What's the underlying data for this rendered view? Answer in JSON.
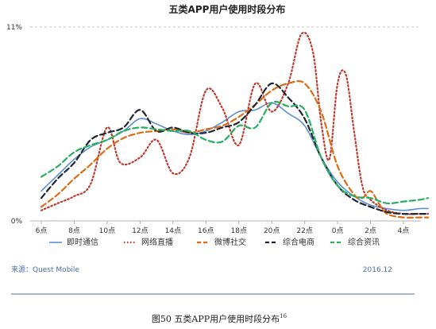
{
  "chart_data": {
    "type": "line",
    "title": "五类APP用户使用时段分布",
    "y_tick_labels": [
      "11%",
      "0%"
    ],
    "ylim": [
      0,
      11
    ],
    "x_tick_labels": [
      "6点",
      "8点",
      "10点",
      "12点",
      "14点",
      "16点",
      "18点",
      "20点",
      "22点",
      "0点",
      "2点",
      "4点"
    ],
    "x_range": [
      6,
      29.5
    ],
    "grid": "dashed-top",
    "legend_position": "bottom",
    "series": [
      {
        "name": "即时通信",
        "style": "solid",
        "color": "#5b8fd0",
        "points": [
          [
            6,
            1.7
          ],
          [
            7,
            2.6
          ],
          [
            8,
            3.5
          ],
          [
            9,
            4.2
          ],
          [
            10,
            4.6
          ],
          [
            11,
            5.1
          ],
          [
            12,
            5.8
          ],
          [
            13,
            5.5
          ],
          [
            14,
            5.1
          ],
          [
            15,
            4.9
          ],
          [
            16,
            5.1
          ],
          [
            17,
            5.6
          ],
          [
            18,
            6.2
          ],
          [
            19,
            6.3
          ],
          [
            20,
            6.7
          ],
          [
            21,
            6.1
          ],
          [
            22,
            5.4
          ],
          [
            23,
            3.6
          ],
          [
            24,
            2.2
          ],
          [
            25,
            1.4
          ],
          [
            26,
            0.9
          ],
          [
            27,
            0.7
          ],
          [
            28,
            0.6
          ],
          [
            29,
            0.7
          ],
          [
            29.5,
            0.7
          ]
        ]
      },
      {
        "name": "网络直播",
        "style": "dotted",
        "color": "#c0392b",
        "points": [
          [
            6,
            0.6
          ],
          [
            7,
            1.0
          ],
          [
            8,
            1.4
          ],
          [
            9,
            2.1
          ],
          [
            10,
            5.3
          ],
          [
            10.8,
            3.3
          ],
          [
            12,
            3.6
          ],
          [
            13,
            4.6
          ],
          [
            14,
            2.7
          ],
          [
            15,
            3.6
          ],
          [
            16,
            7.4
          ],
          [
            17,
            6.4
          ],
          [
            18,
            4.3
          ],
          [
            19,
            7.8
          ],
          [
            20,
            6.2
          ],
          [
            21,
            7.8
          ],
          [
            21.8,
            10.6
          ],
          [
            22.5,
            9.6
          ],
          [
            23,
            5.6
          ],
          [
            23.5,
            3.5
          ],
          [
            24,
            7.8
          ],
          [
            24.5,
            8.3
          ],
          [
            25,
            5.1
          ],
          [
            25.5,
            2.0
          ],
          [
            26,
            1.2
          ],
          [
            27,
            0.6
          ],
          [
            28,
            0.4
          ],
          [
            29,
            0.4
          ],
          [
            29.5,
            0.4
          ]
        ]
      },
      {
        "name": "微博社交",
        "style": "dashed",
        "color": "#e06a12",
        "points": [
          [
            6,
            0.8
          ],
          [
            7,
            1.5
          ],
          [
            8,
            2.4
          ],
          [
            9,
            3.2
          ],
          [
            10,
            4.1
          ],
          [
            11,
            4.7
          ],
          [
            12,
            5.0
          ],
          [
            13,
            5.1
          ],
          [
            14,
            5.2
          ],
          [
            15,
            5.0
          ],
          [
            16,
            5.2
          ],
          [
            17,
            5.4
          ],
          [
            18,
            5.9
          ],
          [
            19,
            6.6
          ],
          [
            20,
            7.4
          ],
          [
            21,
            7.8
          ],
          [
            22,
            7.8
          ],
          [
            23,
            6.2
          ],
          [
            24,
            3.1
          ],
          [
            25,
            1.5
          ],
          [
            25.5,
            1.3
          ],
          [
            26,
            1.7
          ],
          [
            26.5,
            1.0
          ],
          [
            27,
            0.4
          ],
          [
            28,
            0.2
          ],
          [
            29,
            0.2
          ],
          [
            29.5,
            0.2
          ]
        ]
      },
      {
        "name": "综合电商",
        "style": "dashed",
        "color": "#1f2633",
        "points": [
          [
            6,
            1.3
          ],
          [
            7,
            2.4
          ],
          [
            8,
            3.3
          ],
          [
            9,
            4.6
          ],
          [
            10,
            5.0
          ],
          [
            11,
            5.3
          ],
          [
            12,
            6.3
          ],
          [
            13,
            5.1
          ],
          [
            14,
            5.3
          ],
          [
            15,
            5.0
          ],
          [
            16,
            5.0
          ],
          [
            17,
            5.3
          ],
          [
            18,
            5.6
          ],
          [
            19,
            6.6
          ],
          [
            20,
            7.8
          ],
          [
            21,
            7.0
          ],
          [
            22,
            5.8
          ],
          [
            23,
            3.6
          ],
          [
            24,
            2.0
          ],
          [
            25,
            1.2
          ],
          [
            26,
            0.8
          ],
          [
            27,
            0.5
          ],
          [
            28,
            0.4
          ],
          [
            29,
            0.4
          ],
          [
            29.5,
            0.4
          ]
        ]
      },
      {
        "name": "综合资讯",
        "style": "dashed",
        "color": "#27ae60",
        "points": [
          [
            6,
            2.5
          ],
          [
            7,
            3.1
          ],
          [
            8,
            3.9
          ],
          [
            9,
            4.3
          ],
          [
            10,
            4.6
          ],
          [
            11,
            5.1
          ],
          [
            12,
            5.3
          ],
          [
            13,
            5.2
          ],
          [
            14,
            5.1
          ],
          [
            15,
            5.1
          ],
          [
            16,
            4.6
          ],
          [
            17,
            4.5
          ],
          [
            18,
            5.4
          ],
          [
            19,
            5.3
          ],
          [
            20,
            6.7
          ],
          [
            21,
            6.5
          ],
          [
            22,
            6.3
          ],
          [
            23,
            3.6
          ],
          [
            24,
            2.0
          ],
          [
            25,
            1.4
          ],
          [
            26,
            1.3
          ],
          [
            27,
            1.0
          ],
          [
            28,
            1.1
          ],
          [
            29,
            1.2
          ],
          [
            29.5,
            1.3
          ]
        ]
      }
    ]
  },
  "source": {
    "label": "来源：",
    "value": "Quest Mobile",
    "date": "2016.12"
  },
  "caption": {
    "text": "图50 五类APP用户使用时段分布",
    "sup": "16"
  }
}
